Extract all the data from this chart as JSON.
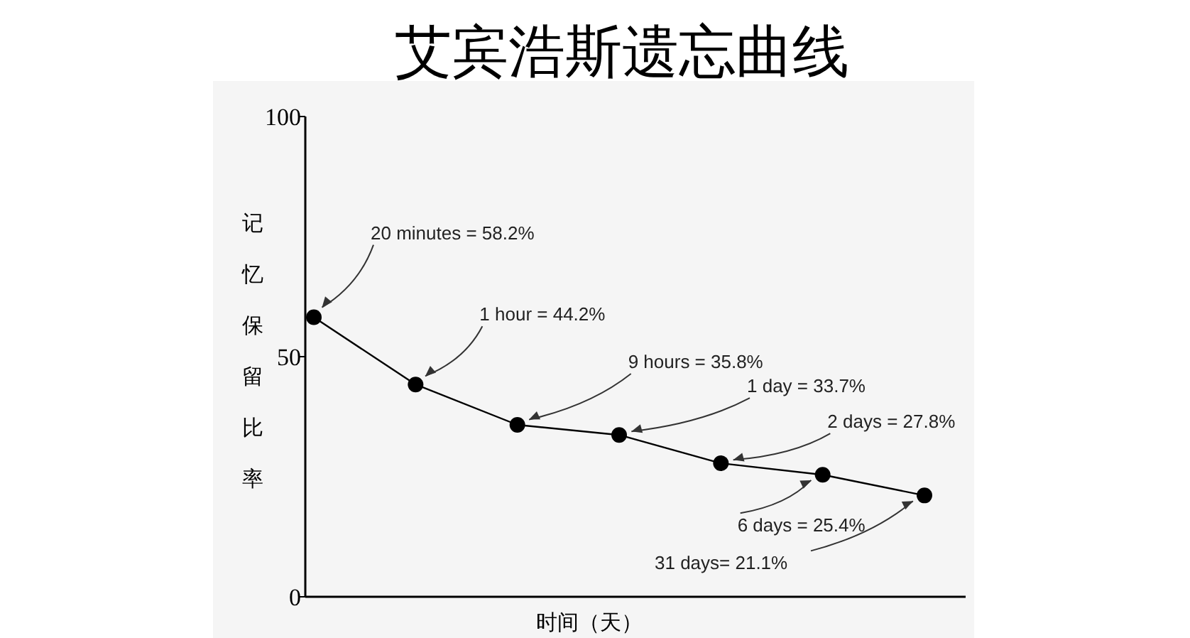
{
  "chart_data": {
    "type": "line",
    "title": "艾宾浩斯遗忘曲线",
    "xlabel": "时间（天）",
    "ylabel": "记忆保留比率",
    "categories": [
      null,
      null,
      null,
      null,
      null,
      null,
      null
    ],
    "series": [
      {
        "color": "#000000",
        "values": [
          58.2,
          44.2,
          35.8,
          33.7,
          27.8,
          25.4,
          21.1
        ]
      }
    ],
    "ylim": [
      0,
      100
    ],
    "yticks": [
      0,
      50,
      100
    ],
    "marker": "circle",
    "line_style": "solid",
    "annotations": [
      "20 minutes = 58.2%",
      "1 hour = 44.2%",
      "9 hours = 35.8%",
      "1 day = 33.7%",
      "2 days = 27.8%",
      "6 days = 25.4%",
      "31 days= 21.1%"
    ]
  }
}
